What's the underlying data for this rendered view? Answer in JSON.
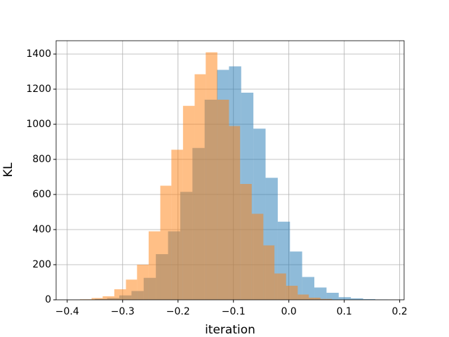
{
  "chart_data": {
    "type": "histogram",
    "xlabel": "iteration",
    "ylabel": "KL",
    "series": [
      {
        "color": "#1f77b4",
        "bins": [
          -0.372,
          -0.35,
          -0.328,
          -0.306,
          -0.284,
          -0.262,
          -0.24,
          -0.218,
          -0.196,
          -0.174,
          -0.152,
          -0.13,
          -0.108,
          -0.086,
          -0.064,
          -0.042,
          -0.02,
          0.002,
          0.024,
          0.046,
          0.068,
          0.09,
          0.112,
          0.134,
          0.156,
          0.178
        ],
        "values": [
          2,
          5,
          10,
          25,
          50,
          125,
          260,
          390,
          615,
          865,
          1140,
          1310,
          1330,
          1180,
          975,
          695,
          445,
          275,
          130,
          70,
          40,
          15,
          8,
          4,
          2
        ]
      },
      {
        "color": "#ff7f0e",
        "bins": [
          -0.377,
          -0.356,
          -0.336,
          -0.315,
          -0.294,
          -0.274,
          -0.253,
          -0.232,
          -0.212,
          -0.191,
          -0.17,
          -0.15,
          -0.129,
          -0.108,
          -0.088,
          -0.067,
          -0.046,
          -0.026,
          -0.005,
          0.016,
          0.036,
          0.057,
          0.078
        ],
        "values": [
          3,
          10,
          20,
          60,
          115,
          200,
          390,
          650,
          855,
          1105,
          1285,
          1410,
          1140,
          990,
          660,
          490,
          310,
          150,
          80,
          30,
          12,
          5
        ]
      }
    ],
    "xlim": [
      -0.42,
      0.208
    ],
    "ylim": [
      0,
      1476
    ],
    "xticks": [
      {
        "value": -0.4,
        "label": "−0.4"
      },
      {
        "value": -0.3,
        "label": "−0.3"
      },
      {
        "value": -0.2,
        "label": "−0.2"
      },
      {
        "value": -0.1,
        "label": "−0.1"
      },
      {
        "value": 0,
        "label": "0.0"
      },
      0.1,
      0.2
    ],
    "yticks": [
      0,
      200,
      400,
      600,
      800,
      1000,
      1200,
      1400
    ],
    "grid": true,
    "opacity": 0.5
  }
}
